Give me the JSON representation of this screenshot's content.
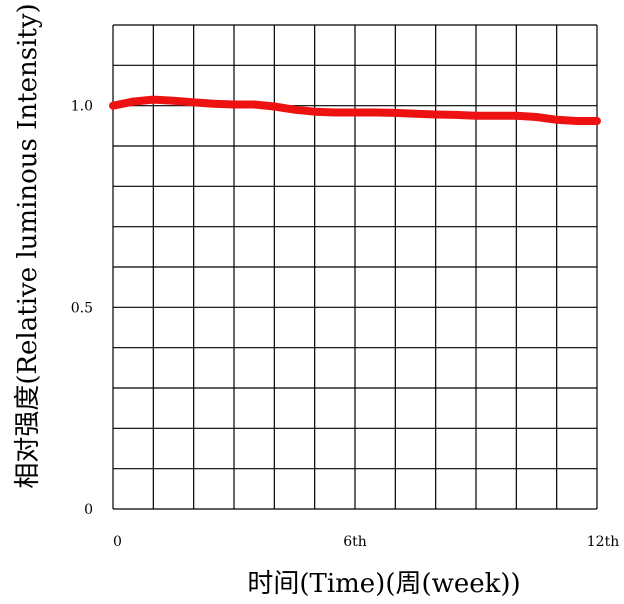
{
  "chart_data": {
    "type": "line",
    "title": "",
    "xlabel": "时间(Time)(周(week))",
    "ylabel": "相对强度(Relative luminous Intensity)",
    "xlim": [
      0,
      12
    ],
    "ylim": [
      0,
      1.2
    ],
    "x_ticks": [
      {
        "value": 0,
        "label": "0"
      },
      {
        "value": 6,
        "label": "6th"
      },
      {
        "value": 12,
        "label": "12th"
      }
    ],
    "y_ticks": [
      {
        "value": 0,
        "label": "0"
      },
      {
        "value": 0.5,
        "label": "0.5"
      },
      {
        "value": 1.0,
        "label": "1.0"
      }
    ],
    "grid": true,
    "grid_x_divisions": 12,
    "grid_y_divisions": 12,
    "series": [
      {
        "color": "#ee1111",
        "x": [
          0,
          0.5,
          1,
          1.5,
          2,
          2.5,
          3,
          3.5,
          4,
          4.5,
          5,
          5.5,
          6,
          6.5,
          7,
          7.5,
          8,
          8.5,
          9,
          9.5,
          10,
          10.5,
          11,
          11.5,
          12
        ],
        "y": [
          1.0,
          1.01,
          1.015,
          1.012,
          1.008,
          1.005,
          1.003,
          1.003,
          0.998,
          0.99,
          0.985,
          0.983,
          0.983,
          0.983,
          0.982,
          0.98,
          0.978,
          0.977,
          0.975,
          0.975,
          0.975,
          0.972,
          0.965,
          0.962,
          0.962
        ]
      }
    ]
  }
}
